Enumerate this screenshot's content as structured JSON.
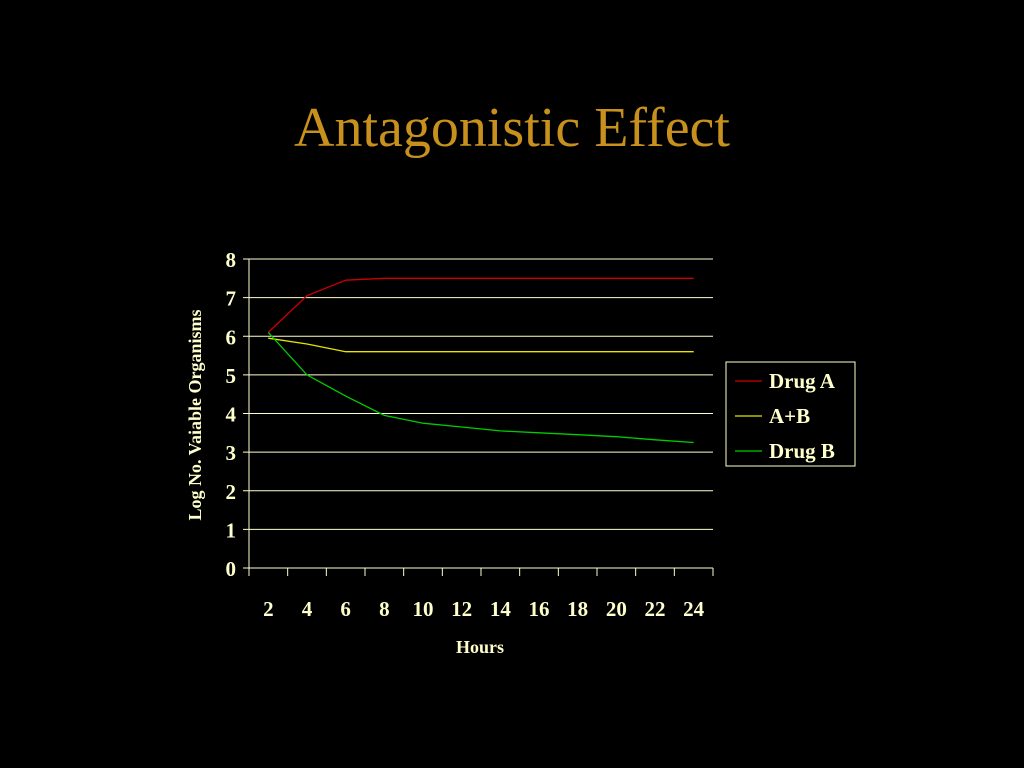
{
  "slide": {
    "title": "Antagonistic Effect"
  },
  "colors": {
    "background": "#000000",
    "title": "#C8901C",
    "text": "#FFFFCC",
    "grid": "#FFFFCC"
  },
  "chart_data": {
    "type": "line",
    "title": "",
    "xlabel": "Hours",
    "ylabel": "Log No. Vaiable Organisms",
    "x_ticks": [
      "2",
      "4",
      "6",
      "8",
      "10",
      "12",
      "14",
      "16",
      "18",
      "20",
      "22",
      "24"
    ],
    "y_ticks": [
      "0",
      "1",
      "2",
      "3",
      "4",
      "5",
      "6",
      "7",
      "8"
    ],
    "ylim": [
      0,
      8
    ],
    "grid": true,
    "legend_position": "right",
    "x": [
      2,
      4,
      6,
      8,
      10,
      12,
      14,
      16,
      18,
      20,
      22,
      24
    ],
    "series": [
      {
        "name": "Drug A",
        "color": "#CC0000",
        "values": [
          6.1,
          7.05,
          7.45,
          7.5,
          7.5,
          7.5,
          7.5,
          7.5,
          7.5,
          7.5,
          7.5,
          7.5
        ]
      },
      {
        "name": "A+B",
        "color": "#E6E600",
        "values": [
          5.95,
          5.8,
          5.6,
          5.6,
          5.6,
          5.6,
          5.6,
          5.6,
          5.6,
          5.6,
          5.6,
          5.6
        ]
      },
      {
        "name": "Drug B",
        "color": "#00CC00",
        "values": [
          6.1,
          5.0,
          4.45,
          3.95,
          3.75,
          3.65,
          3.55,
          3.5,
          3.45,
          3.4,
          3.32,
          3.25
        ]
      }
    ]
  }
}
